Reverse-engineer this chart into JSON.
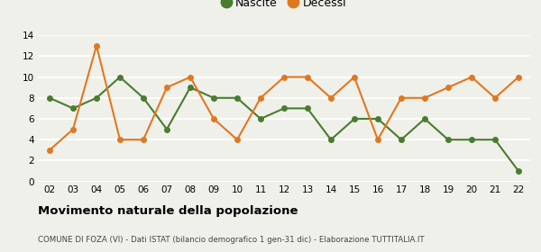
{
  "years": [
    "02",
    "03",
    "04",
    "05",
    "06",
    "07",
    "08",
    "09",
    "10",
    "11",
    "12",
    "13",
    "14",
    "15",
    "16",
    "17",
    "18",
    "19",
    "20",
    "21",
    "22"
  ],
  "nascite": [
    8,
    7,
    8,
    10,
    8,
    5,
    9,
    8,
    8,
    6,
    7,
    7,
    4,
    6,
    6,
    4,
    6,
    4,
    4,
    4,
    1
  ],
  "decessi": [
    3,
    5,
    13,
    4,
    4,
    9,
    10,
    6,
    4,
    8,
    10,
    10,
    8,
    10,
    4,
    8,
    8,
    9,
    10,
    8,
    10
  ],
  "nascite_color": "#4a7c2f",
  "decessi_color": "#e07820",
  "bg_color": "#f0f0eb",
  "title": "Movimento naturale della popolazione",
  "subtitle": "COMUNE DI FOZA (VI) - Dati ISTAT (bilancio demografico 1 gen-31 dic) - Elaborazione TUTTITALIA.IT",
  "legend_nascite": "Nascite",
  "legend_decessi": "Decessi",
  "ylim": [
    0,
    14
  ],
  "yticks": [
    0,
    2,
    4,
    6,
    8,
    10,
    12,
    14
  ]
}
